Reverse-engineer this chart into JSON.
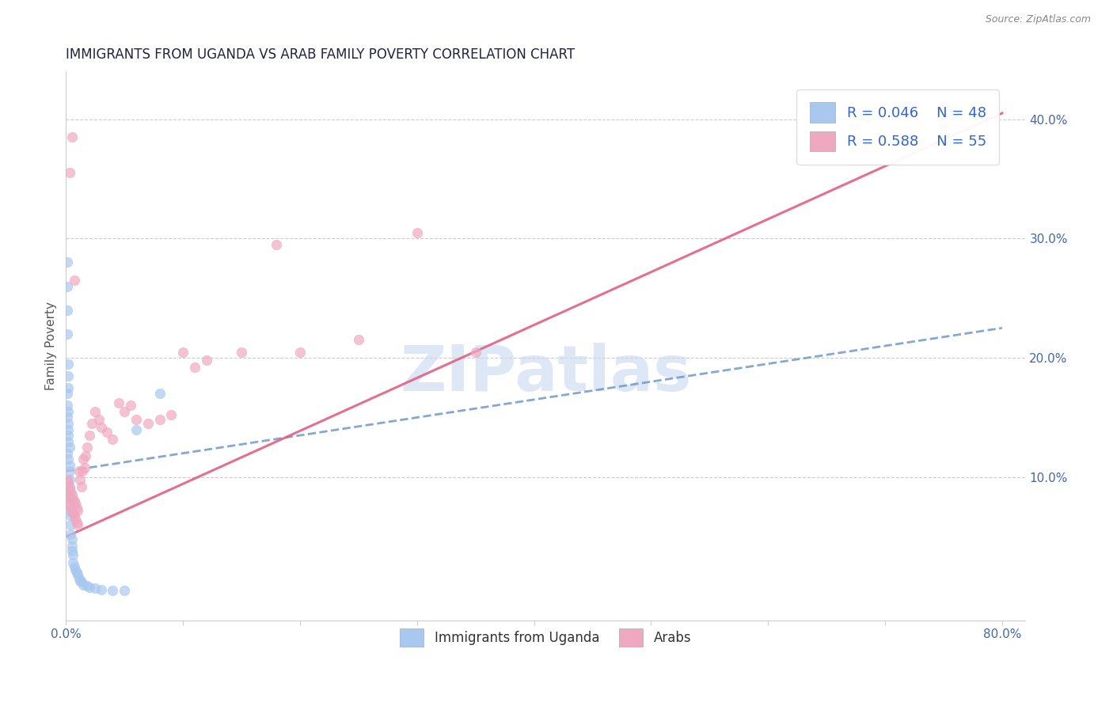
{
  "title": "IMMIGRANTS FROM UGANDA VS ARAB FAMILY POVERTY CORRELATION CHART",
  "source_text": "Source: ZipAtlas.com",
  "ylabel": "Family Poverty",
  "xlim": [
    0.0,
    0.82
  ],
  "ylim": [
    -0.02,
    0.44
  ],
  "y_ticks": [
    0.1,
    0.2,
    0.3,
    0.4
  ],
  "y_tick_labels": [
    "10.0%",
    "20.0%",
    "30.0%",
    "40.0%"
  ],
  "x_ticks": [
    0.0,
    0.1,
    0.2,
    0.3,
    0.4,
    0.5,
    0.6,
    0.7,
    0.8
  ],
  "legend_label1": "Immigrants from Uganda",
  "legend_label2": "Arabs",
  "color_uganda": "#a8c8f0",
  "color_arab": "#f0a8c0",
  "color_trend_uganda": "#7099cc",
  "color_trend_arab": "#e06080",
  "watermark": "ZIPatlas",
  "watermark_color": "#c8d8f0",
  "title_color": "#222244",
  "axis_tick_color": "#4466aa",
  "legend_value_color": "#3366cc",
  "trend_ug_x0": 0.0,
  "trend_ug_y0": 0.105,
  "trend_ug_x1": 0.8,
  "trend_ug_y1": 0.225,
  "trend_ar_x0": 0.0,
  "trend_ar_y0": 0.05,
  "trend_ar_x1": 0.8,
  "trend_ar_y1": 0.405,
  "uganda_x": [
    0.001,
    0.001,
    0.001,
    0.001,
    0.001,
    0.002,
    0.002,
    0.002,
    0.002,
    0.002,
    0.002,
    0.002,
    0.003,
    0.003,
    0.003,
    0.003,
    0.003,
    0.003,
    0.004,
    0.004,
    0.004,
    0.005,
    0.005,
    0.005,
    0.006,
    0.006,
    0.007,
    0.008,
    0.009,
    0.01,
    0.011,
    0.012,
    0.013,
    0.015,
    0.018,
    0.02,
    0.025,
    0.03,
    0.04,
    0.05,
    0.001,
    0.001,
    0.001,
    0.002,
    0.002,
    0.003,
    0.06,
    0.08
  ],
  "uganda_y": [
    0.28,
    0.26,
    0.24,
    0.22,
    0.12,
    0.195,
    0.185,
    0.175,
    0.155,
    0.145,
    0.13,
    0.115,
    0.11,
    0.105,
    0.098,
    0.09,
    0.082,
    0.072,
    0.068,
    0.06,
    0.052,
    0.048,
    0.042,
    0.038,
    0.035,
    0.028,
    0.025,
    0.022,
    0.02,
    0.018,
    0.015,
    0.013,
    0.012,
    0.01,
    0.009,
    0.008,
    0.007,
    0.006,
    0.005,
    0.005,
    0.17,
    0.16,
    0.15,
    0.14,
    0.135,
    0.125,
    0.14,
    0.17
  ],
  "arab_x": [
    0.001,
    0.001,
    0.002,
    0.002,
    0.003,
    0.003,
    0.004,
    0.004,
    0.005,
    0.005,
    0.006,
    0.006,
    0.007,
    0.007,
    0.008,
    0.008,
    0.009,
    0.009,
    0.01,
    0.01,
    0.011,
    0.012,
    0.013,
    0.014,
    0.015,
    0.016,
    0.017,
    0.018,
    0.02,
    0.022,
    0.025,
    0.028,
    0.03,
    0.035,
    0.04,
    0.045,
    0.05,
    0.055,
    0.06,
    0.07,
    0.08,
    0.09,
    0.1,
    0.11,
    0.12,
    0.15,
    0.18,
    0.2,
    0.25,
    0.3,
    0.35,
    0.003,
    0.005,
    0.007,
    0.75
  ],
  "arab_y": [
    0.098,
    0.085,
    0.095,
    0.082,
    0.092,
    0.078,
    0.088,
    0.075,
    0.085,
    0.072,
    0.082,
    0.07,
    0.08,
    0.068,
    0.078,
    0.065,
    0.075,
    0.062,
    0.072,
    0.06,
    0.105,
    0.098,
    0.092,
    0.105,
    0.115,
    0.108,
    0.118,
    0.125,
    0.135,
    0.145,
    0.155,
    0.148,
    0.142,
    0.138,
    0.132,
    0.162,
    0.155,
    0.16,
    0.148,
    0.145,
    0.148,
    0.152,
    0.205,
    0.192,
    0.198,
    0.205,
    0.295,
    0.205,
    0.215,
    0.305,
    0.205,
    0.355,
    0.385,
    0.265,
    0.395
  ]
}
